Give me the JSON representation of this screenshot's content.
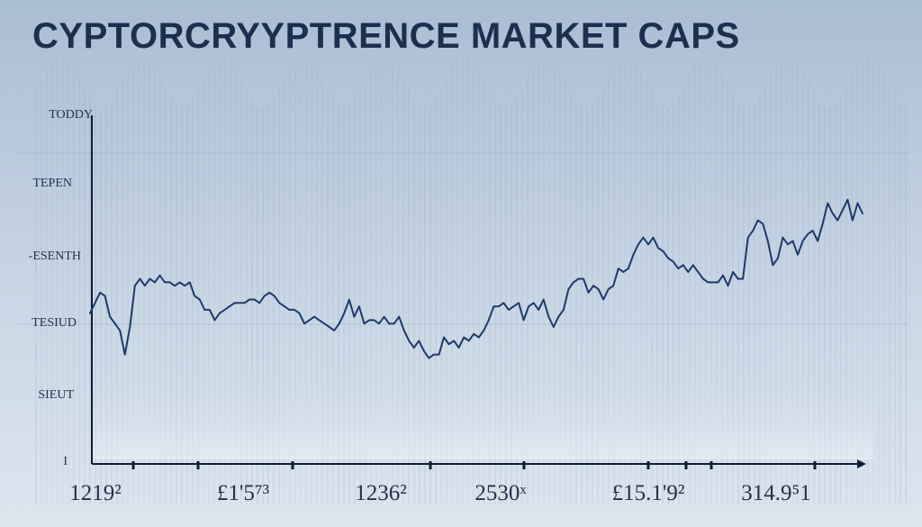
{
  "chart_data": {
    "type": "line",
    "title": "CYPTORCRYYPTRENCE MARKET CAPS",
    "y_tick_labels": [
      "TODDY",
      "TEPEN",
      "-ESENTH",
      "TESIUD",
      "SIEUT",
      "I"
    ],
    "x_tick_labels": [
      "1219²",
      "£1'5⁷³",
      "1236²",
      "2530ˣ",
      "£15.1'9²",
      "314.9⁵1"
    ],
    "ylim": [
      0,
      100
    ],
    "grid": true,
    "series": [
      {
        "color": "#1d3a68",
        "values": [
          43,
          46,
          49,
          48,
          42,
          40,
          38,
          31,
          39,
          51,
          53,
          51,
          53,
          52,
          54,
          52,
          52,
          51,
          52,
          51,
          52,
          48,
          47,
          44,
          44,
          41,
          43,
          44,
          45,
          46,
          46,
          46,
          47,
          47,
          46,
          48,
          49,
          48,
          46,
          45,
          44,
          44,
          43,
          40,
          41,
          42,
          41,
          40,
          39,
          38,
          40,
          43,
          47,
          42,
          45,
          40,
          41,
          41,
          40,
          42,
          40,
          40,
          42,
          38,
          35,
          33,
          35,
          32,
          30,
          31,
          31,
          36,
          34,
          35,
          33,
          36,
          35,
          37,
          36,
          38,
          41,
          45,
          45,
          46,
          44,
          45,
          46,
          41,
          45,
          46,
          44,
          47,
          42,
          39,
          42,
          44,
          50,
          52,
          53,
          53,
          49,
          51,
          50,
          47,
          50,
          51,
          56,
          55,
          56,
          60,
          63,
          65,
          63,
          65,
          62,
          61,
          59,
          58,
          56,
          57,
          55,
          57,
          55,
          53,
          52,
          52,
          52,
          54,
          51,
          55,
          53,
          53,
          65,
          67,
          70,
          69,
          64,
          57,
          59,
          65,
          63,
          64,
          60,
          64,
          66,
          67,
          64,
          69,
          75,
          72,
          70,
          73,
          76,
          70,
          75,
          72
        ],
        "line_width": 2
      }
    ],
    "colors": {
      "axis": "#0f1d35",
      "grid": "#6f86a3",
      "title": "#1c2f4f"
    }
  }
}
